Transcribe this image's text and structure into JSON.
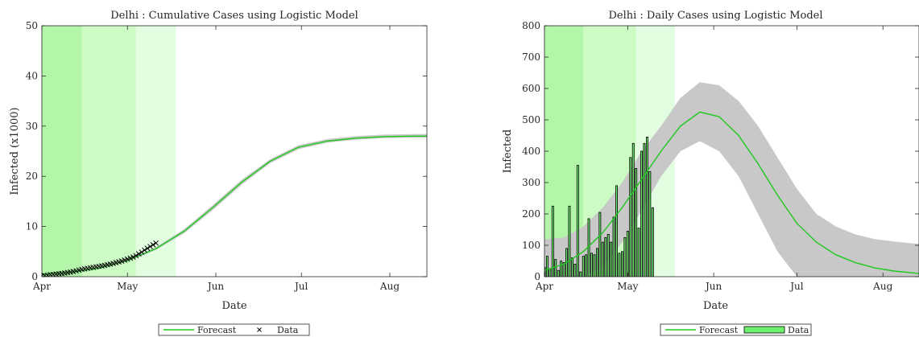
{
  "chart_data": [
    {
      "type": "line",
      "title": "Delhi : Cumulative Cases using Logistic Model",
      "xlabel": "Date",
      "ylabel": "Infected (x1000)",
      "xlim": [
        "2020-04-01",
        "2020-08-14"
      ],
      "ylim": [
        0,
        50
      ],
      "x_ticks": [
        "2020-04-01",
        "2020-05-01",
        "2020-06-01",
        "2020-07-01",
        "2020-08-01"
      ],
      "x_tick_labels": [
        "Apr",
        "May",
        "Jun",
        "Jul",
        "Aug"
      ],
      "y_ticks": [
        0,
        10,
        20,
        30,
        40,
        50
      ],
      "y_tick_labels": [
        "0",
        "10",
        "20",
        "30",
        "40",
        "50"
      ],
      "shaded_periods": [
        {
          "from": "2020-04-01",
          "to": "2020-04-15",
          "color": "#b3f5a9"
        },
        {
          "from": "2020-04-15",
          "to": "2020-05-04",
          "color": "#ccfbc4"
        },
        {
          "from": "2020-05-04",
          "to": "2020-05-18",
          "color": "#e2fde0"
        }
      ],
      "series": [
        {
          "name": "Forecast",
          "kind": "logistic_curve",
          "color": "#1ec81e",
          "band_color": "#c8c8c8",
          "x": [
            "2020-04-01",
            "2020-04-11",
            "2020-04-21",
            "2020-05-01",
            "2020-05-11",
            "2020-05-21",
            "2020-05-31",
            "2020-06-10",
            "2020-06-20",
            "2020-06-30",
            "2020-07-10",
            "2020-07-20",
            "2020-07-30",
            "2020-08-09",
            "2020-08-14"
          ],
          "values": [
            0.5,
            0.9,
            1.7,
            3.2,
            5.6,
            9.1,
            13.8,
            18.8,
            23.0,
            25.8,
            27.0,
            27.6,
            27.9,
            28.0,
            28.0
          ],
          "lower": [
            0.4,
            0.8,
            1.6,
            3.0,
            5.3,
            8.7,
            13.3,
            18.3,
            22.6,
            25.4,
            26.7,
            27.3,
            27.6,
            27.7,
            27.7
          ],
          "upper": [
            0.6,
            1.0,
            1.8,
            3.4,
            5.9,
            9.5,
            14.3,
            19.3,
            23.4,
            26.2,
            27.4,
            28.0,
            28.3,
            28.4,
            28.4
          ]
        },
        {
          "name": "Data",
          "kind": "markers",
          "marker": "x",
          "color": "#000000",
          "x": [
            "2020-04-01",
            "2020-04-02",
            "2020-04-03",
            "2020-04-04",
            "2020-04-05",
            "2020-04-06",
            "2020-04-07",
            "2020-04-08",
            "2020-04-09",
            "2020-04-10",
            "2020-04-11",
            "2020-04-12",
            "2020-04-13",
            "2020-04-14",
            "2020-04-15",
            "2020-04-16",
            "2020-04-17",
            "2020-04-18",
            "2020-04-19",
            "2020-04-20",
            "2020-04-21",
            "2020-04-22",
            "2020-04-23",
            "2020-04-24",
            "2020-04-25",
            "2020-04-26",
            "2020-04-27",
            "2020-04-28",
            "2020-04-29",
            "2020-04-30",
            "2020-05-01",
            "2020-05-02",
            "2020-05-03",
            "2020-05-04",
            "2020-05-05",
            "2020-05-06",
            "2020-05-07",
            "2020-05-08",
            "2020-05-09",
            "2020-05-10",
            "2020-05-11"
          ],
          "values": [
            0.15,
            0.22,
            0.29,
            0.39,
            0.45,
            0.52,
            0.58,
            0.64,
            0.72,
            0.82,
            0.9,
            1.02,
            1.15,
            1.3,
            1.45,
            1.55,
            1.65,
            1.75,
            1.85,
            1.95,
            2.05,
            2.15,
            2.25,
            2.38,
            2.5,
            2.65,
            2.8,
            2.95,
            3.1,
            3.3,
            3.5,
            3.7,
            3.9,
            4.2,
            4.55,
            4.9,
            5.3,
            5.65,
            6.0,
            6.35,
            6.7
          ]
        }
      ],
      "legend": {
        "position": "bottom-outside",
        "items": [
          "Forecast",
          "Data"
        ]
      }
    },
    {
      "type": "bar",
      "title": "Delhi : Daily Cases using Logistic Model",
      "xlabel": "Date",
      "ylabel": "Infected",
      "xlim": [
        "2020-04-01",
        "2020-08-14"
      ],
      "ylim": [
        0,
        800
      ],
      "x_ticks": [
        "2020-04-01",
        "2020-05-01",
        "2020-06-01",
        "2020-07-01",
        "2020-08-01"
      ],
      "x_tick_labels": [
        "Apr",
        "May",
        "Jun",
        "Jul",
        "Aug"
      ],
      "y_ticks": [
        0,
        100,
        200,
        300,
        400,
        500,
        600,
        700,
        800
      ],
      "y_tick_labels": [
        "0",
        "100",
        "200",
        "300",
        "400",
        "500",
        "600",
        "700",
        "800"
      ],
      "shaded_periods": [
        {
          "from": "2020-04-01",
          "to": "2020-04-15",
          "color": "#b3f5a9"
        },
        {
          "from": "2020-04-15",
          "to": "2020-05-04",
          "color": "#ccfbc4"
        },
        {
          "from": "2020-05-04",
          "to": "2020-05-18",
          "color": "#e2fde0"
        }
      ],
      "series": [
        {
          "name": "Forecast",
          "kind": "line",
          "color": "#1ec81e",
          "band_color": "#c8c8c8",
          "x": [
            "2020-04-01",
            "2020-04-08",
            "2020-04-15",
            "2020-04-22",
            "2020-04-29",
            "2020-05-06",
            "2020-05-13",
            "2020-05-20",
            "2020-05-27",
            "2020-06-03",
            "2020-06-10",
            "2020-06-17",
            "2020-06-24",
            "2020-07-01",
            "2020-07-08",
            "2020-07-15",
            "2020-07-22",
            "2020-07-29",
            "2020-08-05",
            "2020-08-12",
            "2020-08-14"
          ],
          "values": [
            20,
            40,
            80,
            140,
            220,
            310,
            400,
            480,
            525,
            510,
            450,
            360,
            260,
            170,
            110,
            70,
            45,
            28,
            18,
            12,
            10
          ],
          "lower": [
            0,
            0,
            0,
            30,
            110,
            210,
            320,
            400,
            432,
            400,
            320,
            200,
            80,
            0,
            0,
            0,
            0,
            0,
            0,
            0,
            0
          ],
          "upper": [
            120,
            125,
            160,
            220,
            300,
            400,
            480,
            570,
            620,
            610,
            560,
            480,
            380,
            280,
            200,
            160,
            135,
            120,
            112,
            106,
            105
          ]
        },
        {
          "name": "Data",
          "kind": "bars",
          "color": "#6ef06e",
          "edge_color": "#000000",
          "x": [
            "2020-04-01",
            "2020-04-02",
            "2020-04-03",
            "2020-04-04",
            "2020-04-05",
            "2020-04-06",
            "2020-04-07",
            "2020-04-08",
            "2020-04-09",
            "2020-04-10",
            "2020-04-11",
            "2020-04-12",
            "2020-04-13",
            "2020-04-14",
            "2020-04-15",
            "2020-04-16",
            "2020-04-17",
            "2020-04-18",
            "2020-04-19",
            "2020-04-20",
            "2020-04-21",
            "2020-04-22",
            "2020-04-23",
            "2020-04-24",
            "2020-04-25",
            "2020-04-26",
            "2020-04-27",
            "2020-04-28",
            "2020-04-29",
            "2020-04-30",
            "2020-05-01",
            "2020-05-02",
            "2020-05-03",
            "2020-05-04",
            "2020-05-05",
            "2020-05-06",
            "2020-05-07",
            "2020-05-08",
            "2020-05-09",
            "2020-05-10",
            "2020-05-11"
          ],
          "values": [
            30,
            65,
            25,
            225,
            55,
            20,
            50,
            45,
            90,
            225,
            60,
            40,
            355,
            15,
            65,
            70,
            185,
            75,
            70,
            90,
            205,
            110,
            125,
            135,
            110,
            190,
            290,
            75,
            80,
            125,
            145,
            380,
            425,
            345,
            155,
            400,
            425,
            445,
            335,
            220,
            0
          ]
        }
      ],
      "legend": {
        "position": "bottom-outside",
        "items": [
          "Forecast",
          "Data"
        ]
      }
    }
  ]
}
